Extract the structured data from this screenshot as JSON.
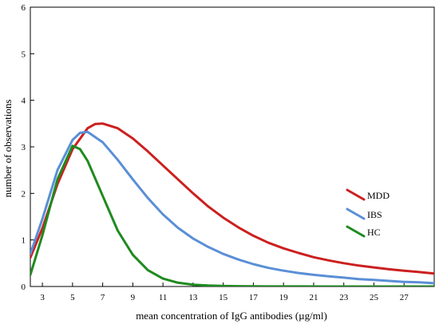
{
  "chart_data": {
    "type": "line",
    "xlabel": "mean concentration of IgG antibodies (µg/ml)",
    "ylabel": "number of observations",
    "xlim": [
      2.2,
      29.0
    ],
    "ylim": [
      0,
      6
    ],
    "x_ticks": [
      3,
      5,
      7,
      9,
      11,
      13,
      15,
      17,
      19,
      21,
      23,
      25,
      27
    ],
    "y_ticks": [
      0,
      1,
      2,
      3,
      4,
      5,
      6
    ],
    "grid": false,
    "legend_position": "right",
    "series": [
      {
        "name": "MDD",
        "color": "#cc1f1f",
        "x": [
          2.2,
          3,
          4,
          5,
          6,
          6.5,
          7,
          8,
          9,
          10,
          11,
          12,
          13,
          14,
          15,
          16,
          17,
          18,
          19,
          20,
          21,
          22,
          23,
          24,
          25,
          26,
          27,
          28,
          29
        ],
        "y": [
          0.62,
          1.25,
          2.2,
          2.95,
          3.4,
          3.49,
          3.5,
          3.4,
          3.18,
          2.9,
          2.6,
          2.3,
          2.0,
          1.72,
          1.48,
          1.27,
          1.09,
          0.94,
          0.82,
          0.72,
          0.63,
          0.56,
          0.5,
          0.45,
          0.41,
          0.37,
          0.34,
          0.31,
          0.28
        ]
      },
      {
        "name": "IBS",
        "color": "#5a8fd6",
        "x": [
          2.2,
          3,
          4,
          5,
          5.5,
          6,
          7,
          8,
          9,
          10,
          11,
          12,
          13,
          14,
          15,
          16,
          17,
          18,
          19,
          20,
          21,
          22,
          23,
          24,
          25,
          26,
          27,
          28,
          29
        ],
        "y": [
          0.7,
          1.45,
          2.5,
          3.15,
          3.3,
          3.32,
          3.1,
          2.72,
          2.3,
          1.9,
          1.55,
          1.26,
          1.03,
          0.85,
          0.7,
          0.58,
          0.48,
          0.4,
          0.34,
          0.29,
          0.25,
          0.22,
          0.19,
          0.16,
          0.14,
          0.12,
          0.1,
          0.09,
          0.07
        ]
      },
      {
        "name": "HC",
        "color": "#1f8a1f",
        "x": [
          2.2,
          3,
          4,
          5,
          5.5,
          6,
          7,
          8,
          9,
          10,
          11,
          12,
          13,
          14,
          15,
          16,
          17,
          18,
          19,
          20,
          22,
          24,
          26,
          29
        ],
        "y": [
          0.25,
          1.1,
          2.3,
          3.02,
          2.95,
          2.7,
          1.95,
          1.2,
          0.68,
          0.35,
          0.17,
          0.08,
          0.04,
          0.02,
          0.01,
          0.006,
          0.003,
          0.002,
          0.001,
          0.001,
          0.0,
          0.0,
          0.0,
          0.0
        ]
      }
    ]
  }
}
